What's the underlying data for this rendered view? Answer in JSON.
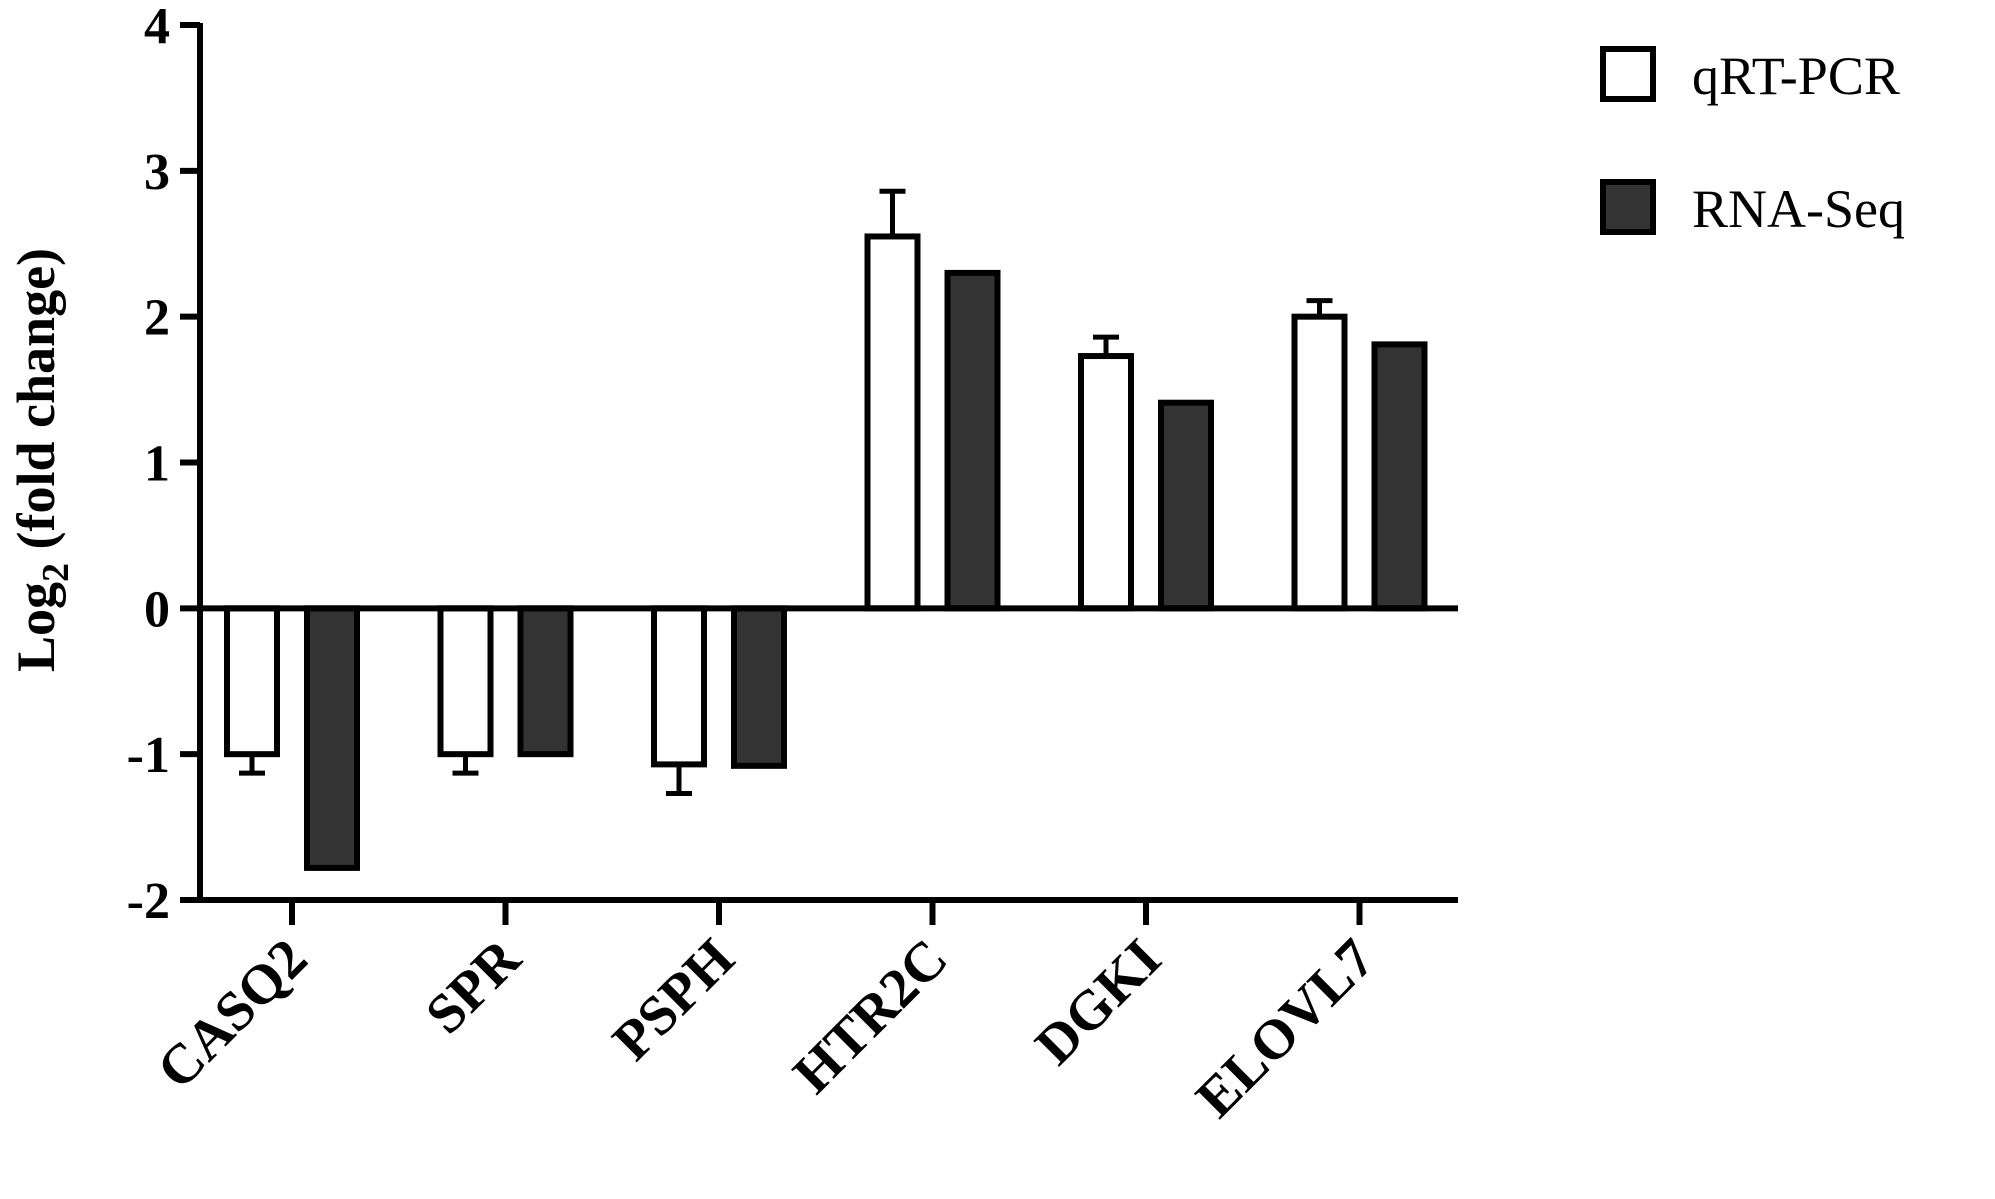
{
  "chart_data": {
    "type": "bar",
    "title": "",
    "xlabel": "",
    "ylabel": {
      "prefix": "Log",
      "subscript": "2",
      "suffix": " (fold change)"
    },
    "ylim": [
      -2,
      4
    ],
    "yticks": [
      "-2",
      "-1",
      "0",
      "1",
      "2",
      "3",
      "4"
    ],
    "categories": [
      "CASQ2",
      "SPR",
      "PSPH",
      "HTR2C",
      "DGKI",
      "ELOVL7"
    ],
    "series": [
      {
        "name": "qRT-PCR",
        "values": [
          -1.0,
          -1.0,
          -1.07,
          2.55,
          1.73,
          2.0
        ],
        "error": [
          0.13,
          0.13,
          0.2,
          0.31,
          0.13,
          0.11
        ],
        "fill": "#ffffff",
        "stroke": "#000000"
      },
      {
        "name": "RNA-Seq",
        "values": [
          -1.78,
          -1.0,
          -1.08,
          2.3,
          1.41,
          1.81
        ],
        "fill": "#333333",
        "stroke": "#000000"
      }
    ],
    "legend": "top-right",
    "grid": false
  }
}
